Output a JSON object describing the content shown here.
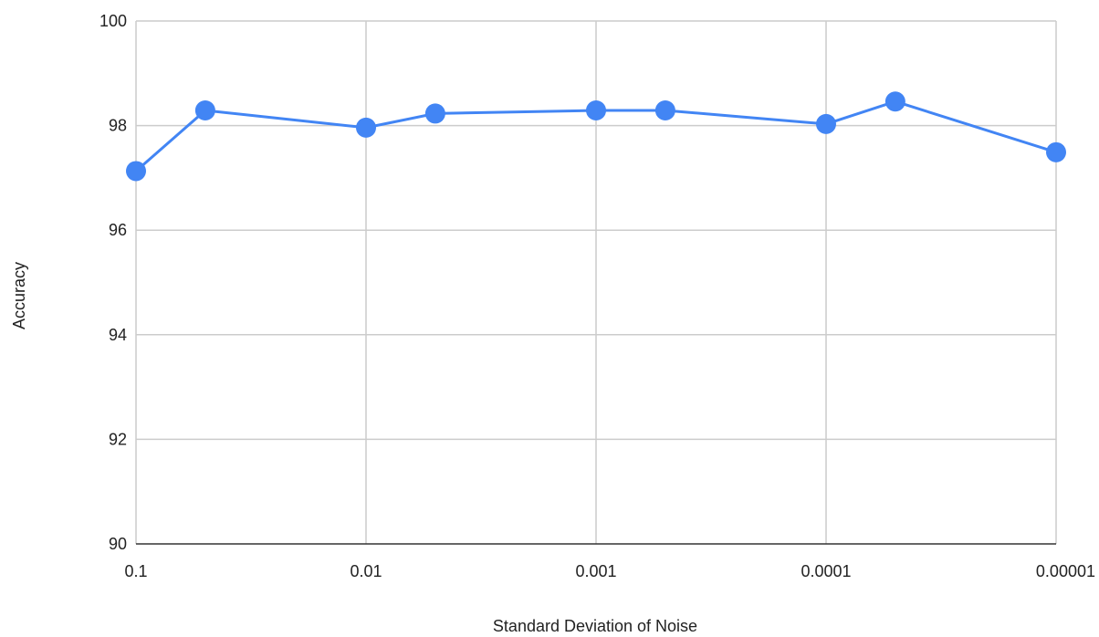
{
  "chart_data": {
    "type": "line",
    "title": "",
    "xlabel": "Standard Deviation of Noise",
    "ylabel": "Accuracy",
    "x_scale": "log-reversed",
    "xlim": [
      0.1,
      1e-05
    ],
    "ylim": [
      90,
      100
    ],
    "x_ticks": [
      0.1,
      0.01,
      0.001,
      0.0001,
      1e-05
    ],
    "x_tick_labels": [
      "0.1",
      "0.01",
      "0.001",
      "0.0001",
      "0.00001"
    ],
    "y_ticks": [
      90,
      92,
      94,
      96,
      98,
      100
    ],
    "y_tick_labels": [
      "90",
      "92",
      "94",
      "96",
      "98",
      "100"
    ],
    "grid": true,
    "legend": "none",
    "series": [
      {
        "color": "#4285f4",
        "x": [
          0.1,
          0.05,
          0.01,
          0.005,
          0.001,
          0.0005,
          0.0001,
          5e-05,
          1e-05
        ],
        "y": [
          97.13,
          98.29,
          97.96,
          98.23,
          98.29,
          98.29,
          98.03,
          98.46,
          97.49
        ]
      }
    ]
  },
  "colors": {
    "grid": "#cccccc",
    "axis": "#333333",
    "series": "#4285f4"
  }
}
